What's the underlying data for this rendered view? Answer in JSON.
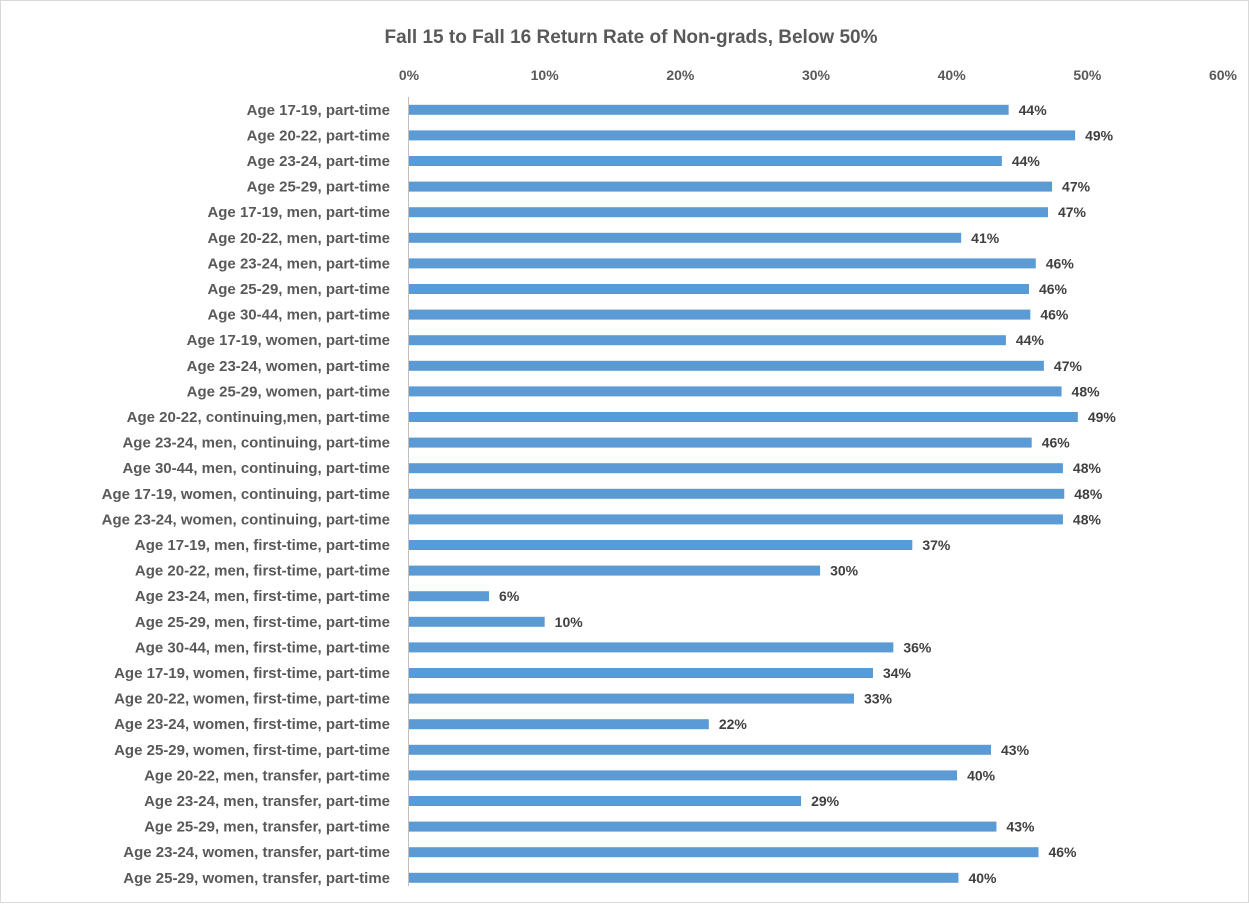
{
  "chart_data": {
    "type": "bar",
    "orientation": "horizontal",
    "title": "Fall 15 to Fall 16 Return Rate of Non-grads, Below 50%",
    "xlim": [
      0,
      60
    ],
    "x_ticks": [
      "0%",
      "10%",
      "20%",
      "30%",
      "40%",
      "50%",
      "60%"
    ],
    "x_axis_position": "top",
    "grid": false,
    "bar_color": "#5b9bd5",
    "categories": [
      "Age 17-19, part-time",
      "Age 20-22, part-time",
      "Age 23-24, part-time",
      "Age 25-29, part-time",
      "Age 17-19, men, part-time",
      "Age 20-22, men, part-time",
      "Age 23-24, men, part-time",
      "Age 25-29, men, part-time",
      "Age 30-44, men, part-time",
      "Age 17-19, women, part-time",
      "Age 23-24, women, part-time",
      "Age 25-29, women, part-time",
      "Age 20-22, continuing,men, part-time",
      "Age 23-24, men, continuing, part-time",
      "Age 30-44, men, continuing, part-time",
      "Age 17-19, women, continuing, part-time",
      "Age 23-24, women, continuing, part-time",
      "Age 17-19, men, first-time, part-time",
      "Age 20-22, men, first-time, part-time",
      "Age 23-24, men, first-time, part-time",
      "Age 25-29, men, first-time, part-time",
      "Age 30-44, men, first-time, part-time",
      "Age 17-19, women, first-time, part-time",
      "Age 20-22, women, first-time, part-time",
      "Age 23-24, women, first-time, part-time",
      "Age 25-29, women, first-time, part-time",
      "Age 20-22, men, transfer, part-time",
      "Age 23-24, men, transfer, part-time",
      "Age 25-29, men, transfer, part-time",
      "Age 23-24, women, transfer, part-time",
      "Age 25-29, women, transfer, part-time"
    ],
    "values": [
      44.2,
      49.1,
      43.7,
      47.4,
      47.1,
      40.7,
      46.2,
      45.7,
      45.8,
      44.0,
      46.8,
      48.1,
      49.3,
      45.9,
      48.2,
      48.3,
      48.2,
      37.1,
      30.3,
      5.9,
      10.0,
      35.7,
      34.2,
      32.8,
      22.1,
      42.9,
      40.4,
      28.9,
      43.3,
      46.4,
      40.5
    ],
    "labels": [
      "44%",
      "49%",
      "44%",
      "47%",
      "47%",
      "41%",
      "46%",
      "46%",
      "46%",
      "44%",
      "47%",
      "48%",
      "49%",
      "46%",
      "48%",
      "48%",
      "48%",
      "37%",
      "30%",
      "6%",
      "10%",
      "36%",
      "34%",
      "33%",
      "22%",
      "43%",
      "40%",
      "29%",
      "43%",
      "46%",
      "40%"
    ]
  }
}
